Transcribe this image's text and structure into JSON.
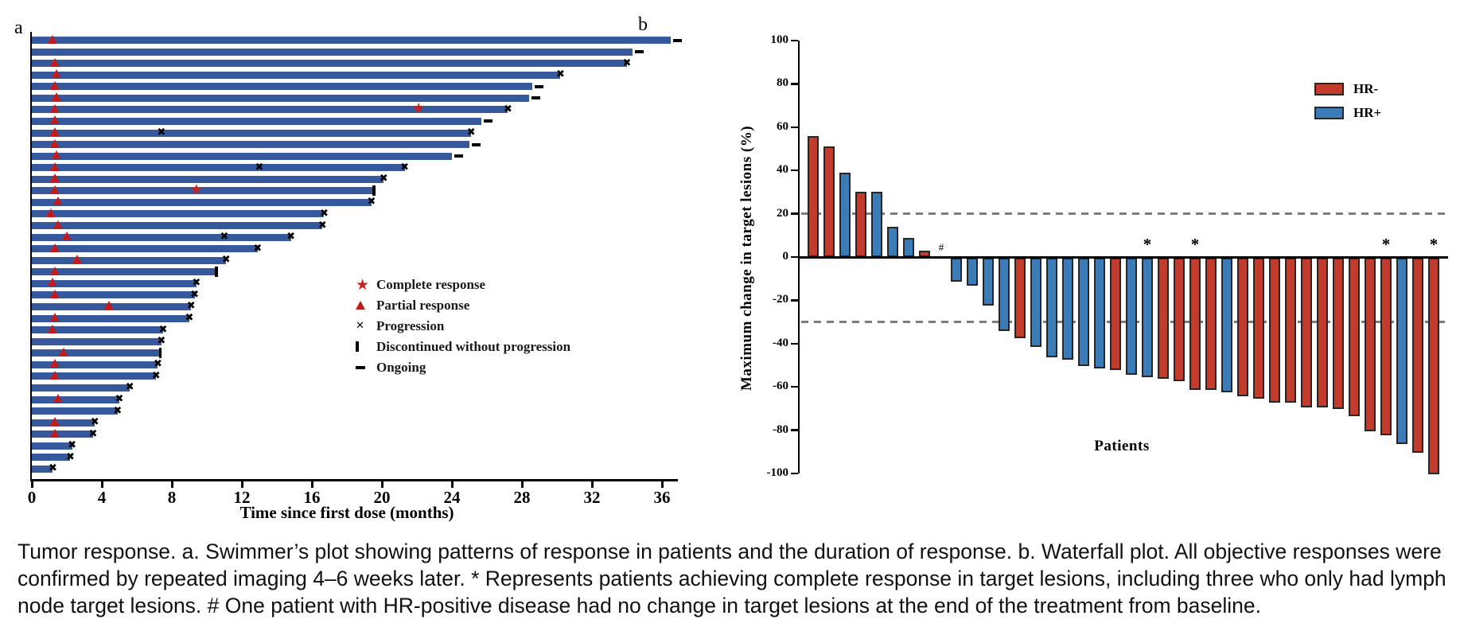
{
  "figure": {
    "panel_a_label": "a",
    "panel_b_label": "b",
    "caption_lines": [
      "Tumor response. a. Swimmer’s plot showing patterns of response in patients and the duration of response. b. Waterfall plot. All objective responses were",
      "confirmed by repeated imaging 4–6 weeks later. * Represents patients achieving complete response in target lesions, including three who only had lymph",
      "node target lesions. # One patient with HR-positive disease had no change in target lesions at the end of the treatment from baseline."
    ]
  },
  "chart_data": [
    {
      "type": "swimmer",
      "panel": "a",
      "xlabel": "Time since first dose (months)",
      "xlim": [
        0,
        37
      ],
      "x_ticks": [
        0,
        4,
        8,
        12,
        16,
        20,
        24,
        28,
        32,
        36
      ],
      "bar_color": "#36599E",
      "marker_colors": {
        "complete_response": "#c42222",
        "partial_response": "#c41a1a",
        "progression": "#000000"
      },
      "legend": [
        {
          "symbol": "star",
          "label": "Complete response"
        },
        {
          "symbol": "triangle",
          "label": "Partial response"
        },
        {
          "symbol": "cross",
          "label": "Progression"
        },
        {
          "symbol": "bar",
          "label": "Discontinued without progression"
        },
        {
          "symbol": "dash",
          "label": "Ongoing"
        }
      ],
      "rows": [
        {
          "duration": 36.5,
          "end": "ongoing",
          "pr": 1.2
        },
        {
          "duration": 34.3,
          "end": "ongoing"
        },
        {
          "duration": 34.0,
          "end": "progression",
          "pr": 1.3
        },
        {
          "duration": 30.2,
          "end": "progression",
          "pr": 1.4
        },
        {
          "duration": 28.6,
          "end": "ongoing",
          "pr": 1.3
        },
        {
          "duration": 28.4,
          "end": "ongoing",
          "pr": 1.4
        },
        {
          "duration": 27.2,
          "end": "progression",
          "pr": 1.3,
          "cr": 22.1
        },
        {
          "duration": 25.7,
          "end": "ongoing",
          "pr": 1.3
        },
        {
          "duration": 25.1,
          "end": "progression",
          "pr": 1.3,
          "xe": [
            7.4
          ]
        },
        {
          "duration": 25.0,
          "end": "ongoing",
          "pr": 1.3
        },
        {
          "duration": 24.0,
          "end": "ongoing",
          "pr": 1.4
        },
        {
          "duration": 21.3,
          "end": "progression",
          "pr": 1.3,
          "xe": [
            13.0
          ]
        },
        {
          "duration": 20.1,
          "end": "progression",
          "pr": 1.3
        },
        {
          "duration": 19.5,
          "end": "discontinued",
          "pr": 1.3,
          "cr": 9.4
        },
        {
          "duration": 19.4,
          "end": "progression",
          "pr": 1.5
        },
        {
          "duration": 16.7,
          "end": "progression",
          "pr": 1.1
        },
        {
          "duration": 16.6,
          "end": "progression",
          "pr": 1.5
        },
        {
          "duration": 14.8,
          "end": "progression",
          "pr": 2.0,
          "xe": [
            11.0
          ]
        },
        {
          "duration": 12.9,
          "end": "progression",
          "pr": 1.3
        },
        {
          "duration": 11.1,
          "end": "progression",
          "pr": 2.6
        },
        {
          "duration": 10.5,
          "end": "discontinued",
          "pr": 1.3
        },
        {
          "duration": 9.4,
          "end": "progression",
          "pr": 1.2
        },
        {
          "duration": 9.3,
          "end": "progression",
          "pr": 1.3
        },
        {
          "duration": 9.1,
          "end": "progression",
          "pr": 4.4
        },
        {
          "duration": 9.0,
          "end": "progression",
          "pr": 1.3
        },
        {
          "duration": 7.5,
          "end": "progression",
          "pr": 1.2
        },
        {
          "duration": 7.4,
          "end": "progression"
        },
        {
          "duration": 7.3,
          "end": "discontinued",
          "pr": 1.8
        },
        {
          "duration": 7.2,
          "end": "progression",
          "pr": 1.3
        },
        {
          "duration": 7.1,
          "end": "progression",
          "pr": 1.3
        },
        {
          "duration": 5.6,
          "end": "progression"
        },
        {
          "duration": 5.0,
          "end": "progression",
          "pr": 1.5
        },
        {
          "duration": 4.9,
          "end": "progression"
        },
        {
          "duration": 3.6,
          "end": "progression",
          "pr": 1.3
        },
        {
          "duration": 3.5,
          "end": "progression",
          "pr": 1.3
        },
        {
          "duration": 2.3,
          "end": "progression"
        },
        {
          "duration": 2.2,
          "end": "progression"
        },
        {
          "duration": 1.2,
          "end": "progression"
        }
      ]
    },
    {
      "type": "bar",
      "panel": "b",
      "xlabel": "Patients",
      "ylabel": "Maximum change in target lesions (%)",
      "ylim": [
        -100,
        100
      ],
      "y_ticks": [
        100,
        80,
        60,
        40,
        20,
        0,
        -20,
        -40,
        -60,
        -80,
        -100
      ],
      "ref_lines": [
        20,
        -30
      ],
      "ref_line_color": "#7b7b7b",
      "colors": {
        "HR-": "#C23B2B",
        "HR+": "#3B7CB8"
      },
      "legend": [
        {
          "label": "HR-",
          "series": "HR-"
        },
        {
          "label": "HR+",
          "series": "HR+"
        }
      ],
      "values": [
        {
          "v": 56,
          "hr": "HR-"
        },
        {
          "v": 51,
          "hr": "HR-"
        },
        {
          "v": 39,
          "hr": "HR+"
        },
        {
          "v": 30,
          "hr": "HR-"
        },
        {
          "v": 30,
          "hr": "HR+"
        },
        {
          "v": 14,
          "hr": "HR+"
        },
        {
          "v": 9,
          "hr": "HR+"
        },
        {
          "v": 3,
          "hr": "HR-"
        },
        {
          "v": 0,
          "hr": "HR+",
          "mark": "#"
        },
        {
          "v": -11,
          "hr": "HR+"
        },
        {
          "v": -13,
          "hr": "HR+"
        },
        {
          "v": -22,
          "hr": "HR+"
        },
        {
          "v": -34,
          "hr": "HR+"
        },
        {
          "v": -37,
          "hr": "HR-"
        },
        {
          "v": -41,
          "hr": "HR+"
        },
        {
          "v": -46,
          "hr": "HR+"
        },
        {
          "v": -47,
          "hr": "HR+"
        },
        {
          "v": -50,
          "hr": "HR+"
        },
        {
          "v": -51,
          "hr": "HR+"
        },
        {
          "v": -52,
          "hr": "HR-"
        },
        {
          "v": -54,
          "hr": "HR+"
        },
        {
          "v": -55,
          "hr": "HR+",
          "mark": "*"
        },
        {
          "v": -56,
          "hr": "HR-"
        },
        {
          "v": -57,
          "hr": "HR-"
        },
        {
          "v": -61,
          "hr": "HR-",
          "mark": "*"
        },
        {
          "v": -61,
          "hr": "HR-"
        },
        {
          "v": -62,
          "hr": "HR+"
        },
        {
          "v": -64,
          "hr": "HR-"
        },
        {
          "v": -65,
          "hr": "HR-"
        },
        {
          "v": -67,
          "hr": "HR-"
        },
        {
          "v": -67,
          "hr": "HR-"
        },
        {
          "v": -69,
          "hr": "HR-"
        },
        {
          "v": -69,
          "hr": "HR-"
        },
        {
          "v": -70,
          "hr": "HR-"
        },
        {
          "v": -73,
          "hr": "HR-"
        },
        {
          "v": -80,
          "hr": "HR-"
        },
        {
          "v": -82,
          "hr": "HR-",
          "mark": "*"
        },
        {
          "v": -86,
          "hr": "HR+"
        },
        {
          "v": -90,
          "hr": "HR-"
        },
        {
          "v": -100,
          "hr": "HR-",
          "mark": "*"
        }
      ]
    }
  ]
}
